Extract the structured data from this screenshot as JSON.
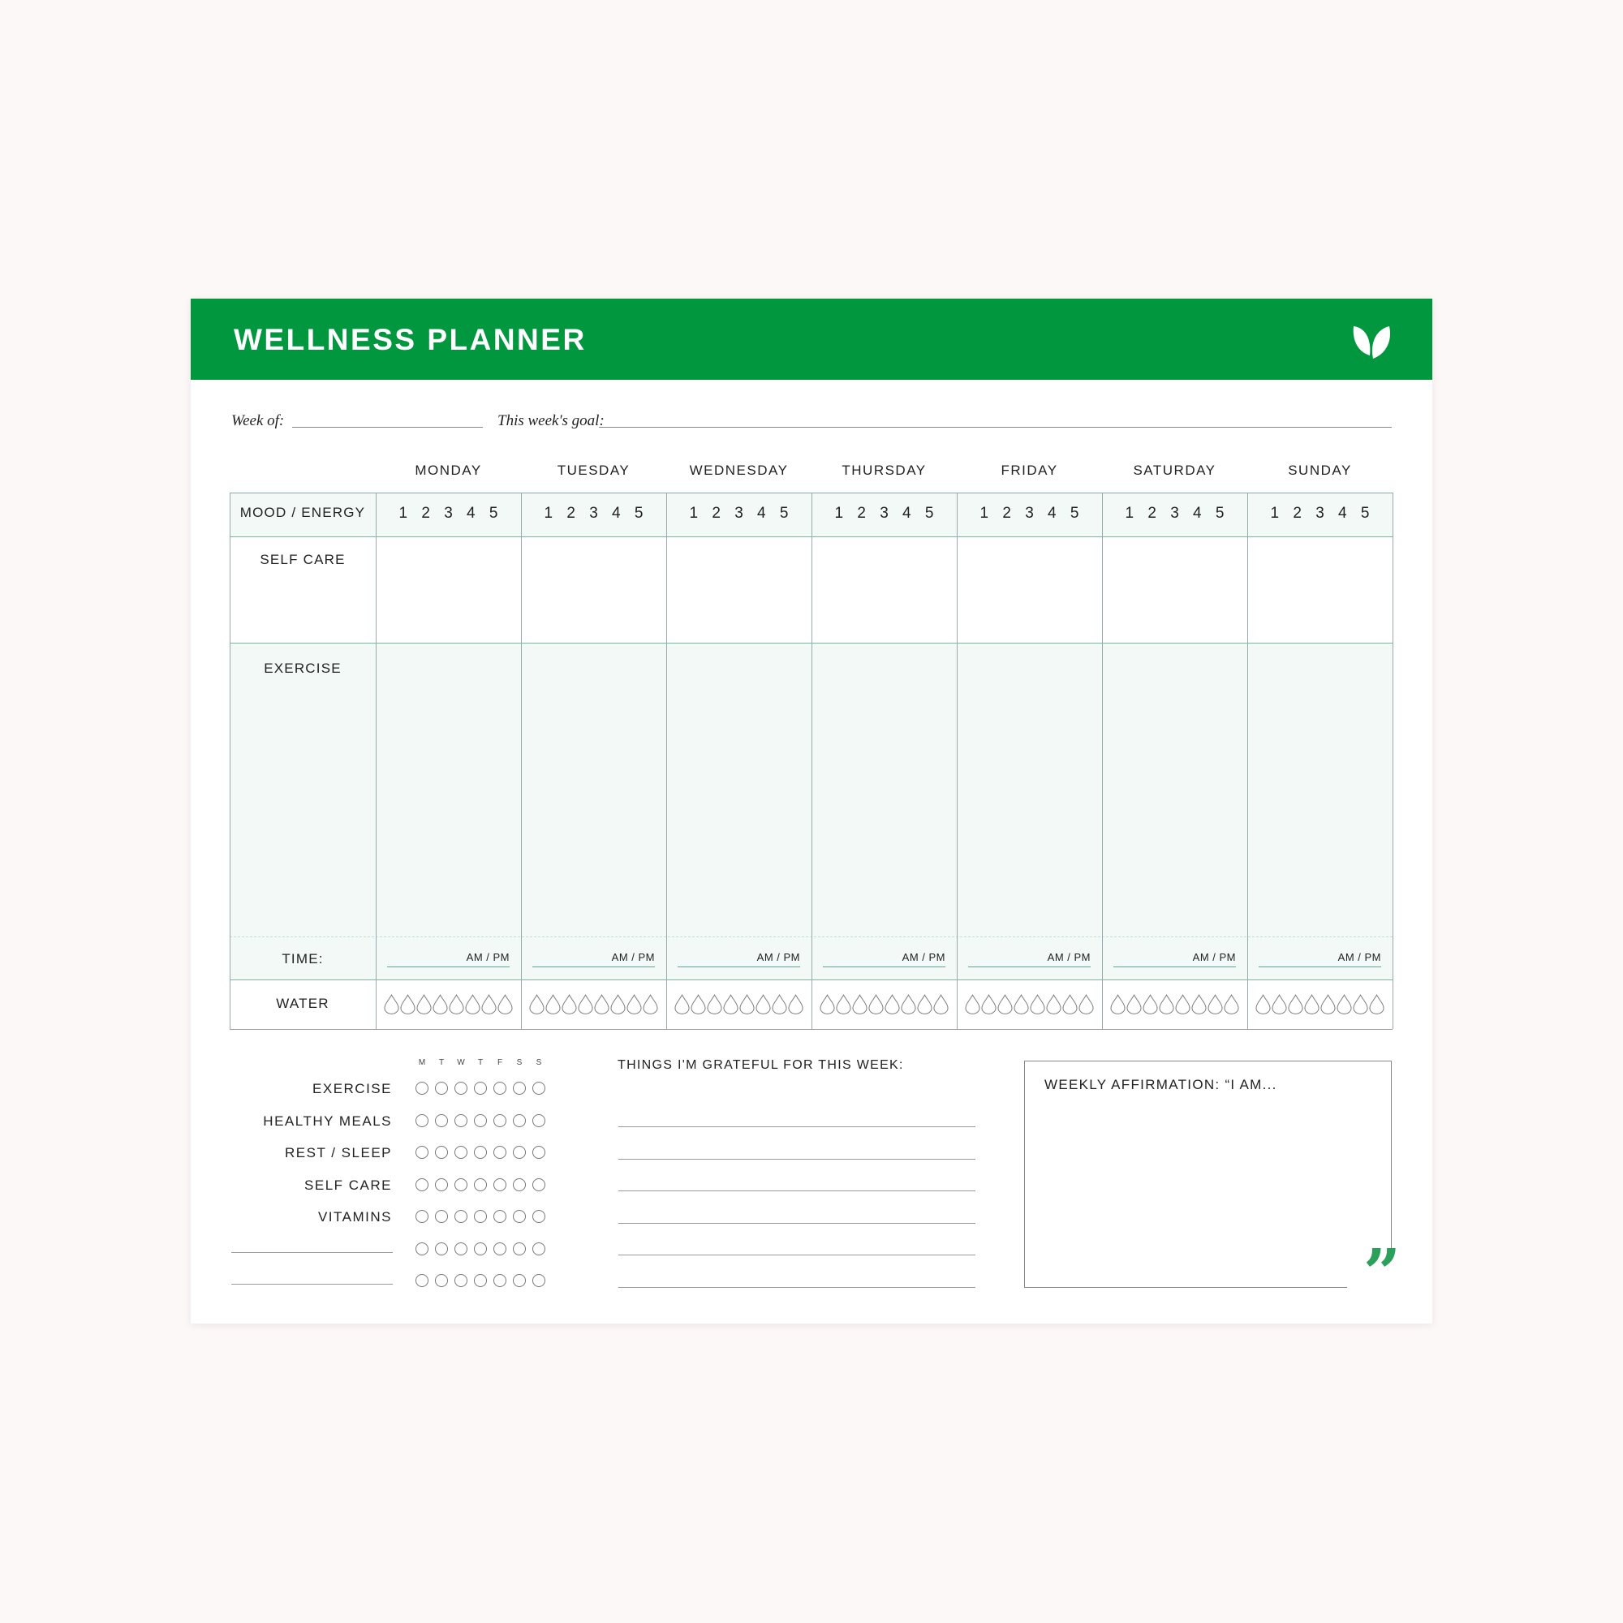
{
  "header": {
    "title": "WELLNESS PLANNER",
    "icon": "leaf-icon",
    "brand_color": "#00973f"
  },
  "week_row": {
    "week_of_label": "Week of:",
    "goal_label": "This week's goal:"
  },
  "table": {
    "days": [
      "MONDAY",
      "TUESDAY",
      "WEDNESDAY",
      "THURSDAY",
      "FRIDAY",
      "SATURDAY",
      "SUNDAY"
    ],
    "rows": {
      "mood": "MOOD / ENERGY",
      "self_care": "SELF CARE",
      "exercise": "EXERCISE",
      "time": "TIME:",
      "water": "WATER"
    },
    "mood_scale": "1 2 3 4 5",
    "ampm": "AM / PM",
    "water_drops_per_day": 8
  },
  "habits": {
    "day_letters": [
      "M",
      "T",
      "W",
      "T",
      "F",
      "S",
      "S"
    ],
    "items": [
      "EXERCISE",
      "HEALTHY MEALS",
      "REST / SLEEP",
      "SELF CARE",
      "VITAMINS",
      "",
      ""
    ]
  },
  "grateful": {
    "heading": "THINGS I'M GRATEFUL FOR THIS WEEK:",
    "line_count": 6
  },
  "affirmation": {
    "label": "WEEKLY AFFIRMATION: “I AM...",
    "closing_quote": "”",
    "accent": "#2aa05a"
  }
}
